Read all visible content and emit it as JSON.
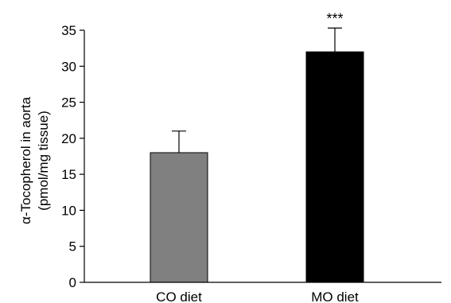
{
  "chart_data": {
    "type": "bar",
    "title": "",
    "xlabel": "",
    "ylabel_lines": [
      "α-Tocopherol in aorta",
      "(pmol/mg tissue)"
    ],
    "categories": [
      "CO diet",
      "MO diet"
    ],
    "values": [
      18,
      32
    ],
    "errors": [
      3,
      3.3
    ],
    "significance": [
      "",
      "***"
    ],
    "ylim": [
      0,
      35
    ],
    "yticks": [
      0,
      5,
      10,
      15,
      20,
      25,
      30,
      35
    ],
    "grid": false,
    "colors": [
      "#808080",
      "#000000"
    ]
  }
}
